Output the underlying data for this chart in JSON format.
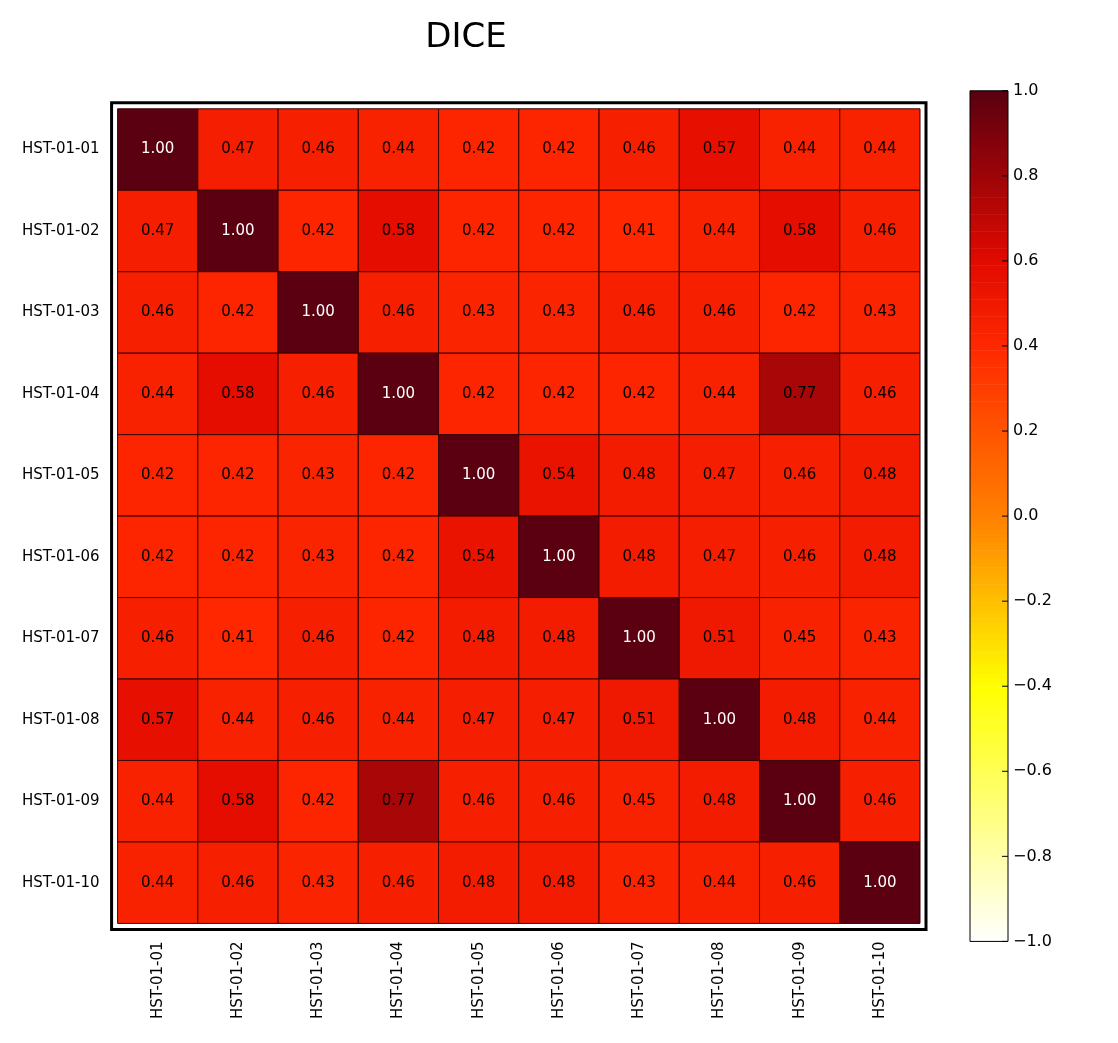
{
  "chart_data": {
    "type": "heatmap",
    "title": "DICE",
    "categories": [
      "HST-01-01",
      "HST-01-02",
      "HST-01-03",
      "HST-01-04",
      "HST-01-05",
      "HST-01-06",
      "HST-01-07",
      "HST-01-08",
      "HST-01-09",
      "HST-01-10"
    ],
    "y_categories": [
      "HST-01-01",
      "HST-01-02",
      "HST-01-03",
      "HST-01-04",
      "HST-01-05",
      "HST-01-06",
      "HST-01-07",
      "HST-01-08",
      "HST-01-09",
      "HST-01-10"
    ],
    "cells": [
      [
        1.0,
        0.47,
        0.46,
        0.44,
        0.42,
        0.42,
        0.46,
        0.57,
        0.44,
        0.44
      ],
      [
        0.47,
        1.0,
        0.42,
        0.58,
        0.42,
        0.42,
        0.41,
        0.44,
        0.58,
        0.46
      ],
      [
        0.46,
        0.42,
        1.0,
        0.46,
        0.43,
        0.43,
        0.46,
        0.46,
        0.42,
        0.43
      ],
      [
        0.44,
        0.58,
        0.46,
        1.0,
        0.42,
        0.42,
        0.42,
        0.44,
        0.77,
        0.46
      ],
      [
        0.42,
        0.42,
        0.43,
        0.42,
        1.0,
        0.54,
        0.48,
        0.47,
        0.46,
        0.48
      ],
      [
        0.42,
        0.42,
        0.43,
        0.42,
        0.54,
        1.0,
        0.48,
        0.47,
        0.46,
        0.48
      ],
      [
        0.46,
        0.41,
        0.46,
        0.42,
        0.48,
        0.48,
        1.0,
        0.51,
        0.45,
        0.43
      ],
      [
        0.57,
        0.44,
        0.46,
        0.44,
        0.47,
        0.47,
        0.51,
        1.0,
        0.48,
        0.44
      ],
      [
        0.44,
        0.58,
        0.42,
        0.77,
        0.46,
        0.46,
        0.45,
        0.48,
        1.0,
        0.46
      ],
      [
        0.44,
        0.46,
        0.43,
        0.46,
        0.48,
        0.48,
        0.43,
        0.44,
        0.46,
        1.0
      ]
    ],
    "cell_labels": [
      [
        "1.00",
        "0.47",
        "0.46",
        "0.44",
        "0.42",
        "0.42",
        "0.46",
        "0.57",
        "0.44",
        "0.44"
      ],
      [
        "0.47",
        "1.00",
        "0.42",
        "0.58",
        "0.42",
        "0.42",
        "0.41",
        "0.44",
        "0.58",
        "0.46"
      ],
      [
        "0.46",
        "0.42",
        "1.00",
        "0.46",
        "0.43",
        "0.43",
        "0.46",
        "0.46",
        "0.42",
        "0.43"
      ],
      [
        "0.44",
        "0.58",
        "0.46",
        "1.00",
        "0.42",
        "0.42",
        "0.42",
        "0.44",
        "0.77",
        "0.46"
      ],
      [
        "0.42",
        "0.42",
        "0.43",
        "0.42",
        "1.00",
        "0.54",
        "0.48",
        "0.47",
        "0.46",
        "0.48"
      ],
      [
        "0.42",
        "0.42",
        "0.43",
        "0.42",
        "0.54",
        "1.00",
        "0.48",
        "0.47",
        "0.46",
        "0.48"
      ],
      [
        "0.46",
        "0.41",
        "0.46",
        "0.42",
        "0.48",
        "0.48",
        "1.00",
        "0.51",
        "0.45",
        "0.43"
      ],
      [
        "0.57",
        "0.44",
        "0.46",
        "0.44",
        "0.47",
        "0.47",
        "0.51",
        "1.00",
        "0.48",
        "0.44"
      ],
      [
        "0.44",
        "0.58",
        "0.42",
        "0.77",
        "0.46",
        "0.46",
        "0.45",
        "0.48",
        "1.00",
        "0.46"
      ],
      [
        "0.44",
        "0.46",
        "0.43",
        "0.46",
        "0.48",
        "0.48",
        "0.43",
        "0.44",
        "0.46",
        "1.00"
      ]
    ],
    "clim": [
      -1.0,
      1.0
    ],
    "cticks": [
      {
        "value": 1,
        "label": "1.0"
      },
      {
        "value": 0.8,
        "label": "0.8"
      },
      {
        "value": 0.6,
        "label": "0.6"
      },
      {
        "value": 0.4,
        "label": "0.4"
      },
      {
        "value": 0.2,
        "label": "0.2"
      },
      {
        "value": 0,
        "label": "0.0"
      },
      {
        "value": -0.2,
        "label": "−0.2"
      },
      {
        "value": -0.4,
        "label": "−0.4"
      },
      {
        "value": -0.6,
        "label": "−0.6"
      },
      {
        "value": -0.8,
        "label": "−0.8"
      },
      {
        "value": -1,
        "label": "−1.0"
      }
    ]
  }
}
